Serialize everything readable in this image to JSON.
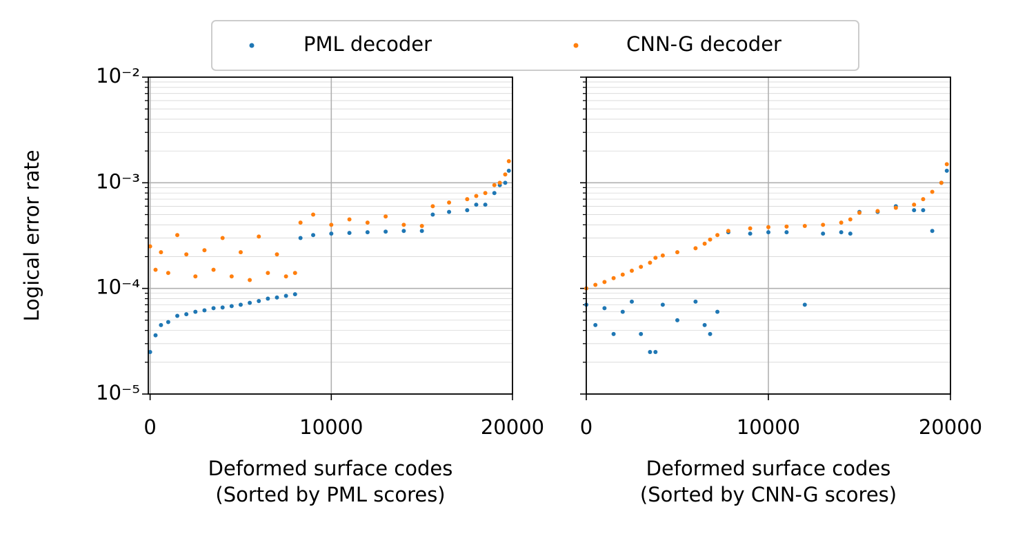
{
  "chart_data": [
    {
      "type": "scatter",
      "y_label": "Logical error rate",
      "x_label": [
        "Deformed surface codes",
        "(Sorted by PML scores)"
      ],
      "log_y": true,
      "grid": true,
      "legend": "upper center",
      "xlim": [
        -100,
        20000
      ],
      "xticks": [
        0,
        10000,
        20000
      ],
      "ylim": [
        1e-05,
        0.01
      ],
      "yticks": [
        {
          "value": 1e-05,
          "label": "10⁻⁵"
        },
        {
          "value": 0.0001,
          "label": "10⁻⁴"
        },
        {
          "value": 0.001,
          "label": "10⁻³"
        },
        {
          "value": 0.01,
          "label": "10⁻²"
        }
      ],
      "x": [
        0,
        300,
        600,
        1000,
        1500,
        2000,
        2500,
        3000,
        3500,
        4000,
        4500,
        5000,
        5500,
        6000,
        6500,
        7000,
        7500,
        8000,
        8300,
        9000,
        10000,
        11000,
        12000,
        13000,
        14000,
        15000,
        15600,
        16500,
        17500,
        18000,
        18500,
        19000,
        19300,
        19600,
        19800
      ],
      "series": [
        {
          "name": "PML decoder",
          "color": "#1f77b4",
          "values": [
            2.5e-05,
            3.6e-05,
            4.5e-05,
            4.8e-05,
            5.5e-05,
            5.7e-05,
            6e-05,
            6.2e-05,
            6.5e-05,
            6.6e-05,
            6.8e-05,
            7e-05,
            7.3e-05,
            7.6e-05,
            8e-05,
            8.2e-05,
            8.5e-05,
            8.8e-05,
            0.0003,
            0.00032,
            0.00033,
            0.000335,
            0.00034,
            0.000345,
            0.00035,
            0.00035,
            0.0005,
            0.00053,
            0.00055,
            0.00062,
            0.00062,
            0.0008,
            0.00095,
            0.001,
            0.0013
          ]
        },
        {
          "name": "CNN-G decoder",
          "color": "#ff7f0e",
          "values": [
            0.00025,
            0.00015,
            0.00022,
            0.00014,
            0.00032,
            0.00021,
            0.00013,
            0.00023,
            0.00015,
            0.0003,
            0.00013,
            0.00022,
            0.00012,
            0.00031,
            0.00014,
            0.00021,
            0.00013,
            0.00014,
            0.00042,
            0.0005,
            0.0004,
            0.00045,
            0.00042,
            0.00048,
            0.0004,
            0.00039,
            0.0006,
            0.00065,
            0.0007,
            0.00075,
            0.0008,
            0.00095,
            0.001,
            0.0012,
            0.0016
          ]
        }
      ]
    },
    {
      "type": "scatter",
      "x_label": [
        "Deformed surface codes",
        "(Sorted by CNN-G scores)"
      ],
      "log_y": true,
      "grid": true,
      "sharey": true,
      "xlim": [
        0,
        20000
      ],
      "xticks": [
        0,
        10000,
        20000
      ],
      "ylim": [
        1e-05,
        0.01
      ],
      "x": [
        0,
        500,
        1000,
        1500,
        2000,
        2500,
        3000,
        3500,
        3800,
        4200,
        5000,
        6000,
        6500,
        6800,
        7200,
        7800,
        9000,
        10000,
        11000,
        12000,
        13000,
        14000,
        14500,
        15000,
        16000,
        17000,
        18000,
        18500,
        19000,
        19500,
        19800
      ],
      "series": [
        {
          "color": "#1f77b4",
          "values": [
            7e-05,
            4.5e-05,
            6.5e-05,
            3.7e-05,
            6e-05,
            7.5e-05,
            3.7e-05,
            2.5e-05,
            2.5e-05,
            7e-05,
            5e-05,
            7.5e-05,
            4.5e-05,
            3.7e-05,
            6e-05,
            0.00034,
            0.00033,
            0.00034,
            0.00034,
            7e-05,
            0.00033,
            0.00034,
            0.00033,
            0.00053,
            0.00053,
            0.0006,
            0.00055,
            0.00055,
            0.00035,
            0.001,
            0.0013
          ]
        },
        {
          "color": "#ff7f0e",
          "values": [
            0.0001,
            0.000108,
            0.000115,
            0.000125,
            0.000135,
            0.000147,
            0.00016,
            0.000175,
            0.000195,
            0.000205,
            0.00022,
            0.00024,
            0.000265,
            0.00029,
            0.00032,
            0.00035,
            0.00037,
            0.00038,
            0.000385,
            0.00039,
            0.0004,
            0.00042,
            0.00045,
            0.00052,
            0.00054,
            0.00058,
            0.00062,
            0.0007,
            0.00082,
            0.001,
            0.0015
          ]
        }
      ]
    }
  ]
}
